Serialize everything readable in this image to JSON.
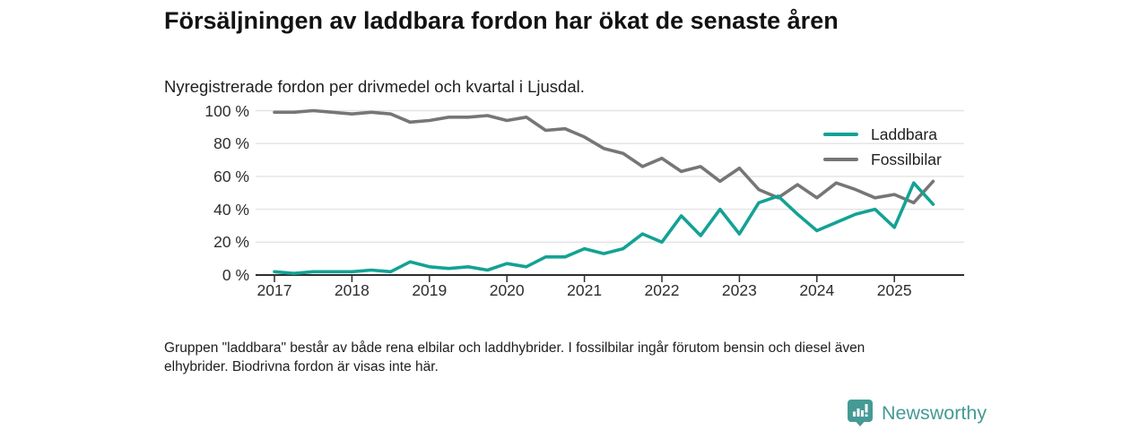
{
  "title": "Försäljningen av laddbara fordon har ökat de senaste åren",
  "subtitle": "Nyregistrerade fordon per drivmedel och kvartal i Ljusdal.",
  "footnote": {
    "line1": "Gruppen \"laddbara\" består av både rena elbilar och laddhybrider. I fossilbilar ingår förutom bensin och diesel även",
    "line2": "elhybrider. Biodrivna fordon är visas inte här."
  },
  "legend": [
    {
      "label": "Laddbara",
      "color": "#13a295"
    },
    {
      "label": "Fossilbilar",
      "color": "#767676"
    }
  ],
  "logo": {
    "text": "Newsworthy",
    "color": "#459a96",
    "icon": "newsworthy-bubble-chart-icon"
  },
  "colors": {
    "accent_teal": "#13a295",
    "series_gray": "#767676",
    "gridline": "#e3e3e3",
    "axis": "#2e2e2e",
    "text": "#1f1f1f",
    "logo_teal": "#459a96"
  },
  "chart_data": {
    "type": "line",
    "title": "Försäljningen av laddbara fordon har ökat de senaste åren",
    "subtitle": "Nyregistrerade fordon per drivmedel och kvartal i Ljusdal.",
    "x_unit": "quarter",
    "grid": "horizontal",
    "legend_position": "top-right",
    "ylim": [
      0,
      100
    ],
    "yticks": [
      "0 %",
      "20 %",
      "40 %",
      "60 %",
      "80 %",
      "100 %"
    ],
    "xticks": [
      "2017",
      "2018",
      "2019",
      "2020",
      "2021",
      "2022",
      "2023",
      "2024",
      "2025"
    ],
    "categories": [
      "2017 Q1",
      "2017 Q2",
      "2017 Q3",
      "2017 Q4",
      "2018 Q1",
      "2018 Q2",
      "2018 Q3",
      "2018 Q4",
      "2019 Q1",
      "2019 Q2",
      "2019 Q3",
      "2019 Q4",
      "2020 Q1",
      "2020 Q2",
      "2020 Q3",
      "2020 Q4",
      "2021 Q1",
      "2021 Q2",
      "2021 Q3",
      "2021 Q4",
      "2022 Q1",
      "2022 Q2",
      "2022 Q3",
      "2022 Q4",
      "2023 Q1",
      "2023 Q2",
      "2023 Q3",
      "2023 Q4",
      "2024 Q1",
      "2024 Q2",
      "2024 Q3",
      "2024 Q4",
      "2025 Q1",
      "2025 Q2",
      "2025 Q3"
    ],
    "series": [
      {
        "name": "Laddbara",
        "color": "#13a295",
        "unit": "%",
        "values": [
          2,
          1,
          2,
          2,
          2,
          3,
          2,
          8,
          5,
          4,
          5,
          3,
          7,
          5,
          11,
          11,
          16,
          13,
          16,
          25,
          20,
          36,
          24,
          40,
          25,
          44,
          48,
          37,
          27,
          32,
          37,
          40,
          29,
          56,
          43
        ]
      },
      {
        "name": "Fossilbilar",
        "color": "#767676",
        "unit": "%",
        "values": [
          99,
          99,
          100,
          99,
          98,
          99,
          98,
          93,
          94,
          96,
          96,
          97,
          94,
          96,
          88,
          89,
          84,
          77,
          74,
          66,
          71,
          63,
          66,
          57,
          65,
          52,
          47,
          55,
          47,
          56,
          52,
          47,
          49,
          44,
          57
        ]
      }
    ]
  }
}
